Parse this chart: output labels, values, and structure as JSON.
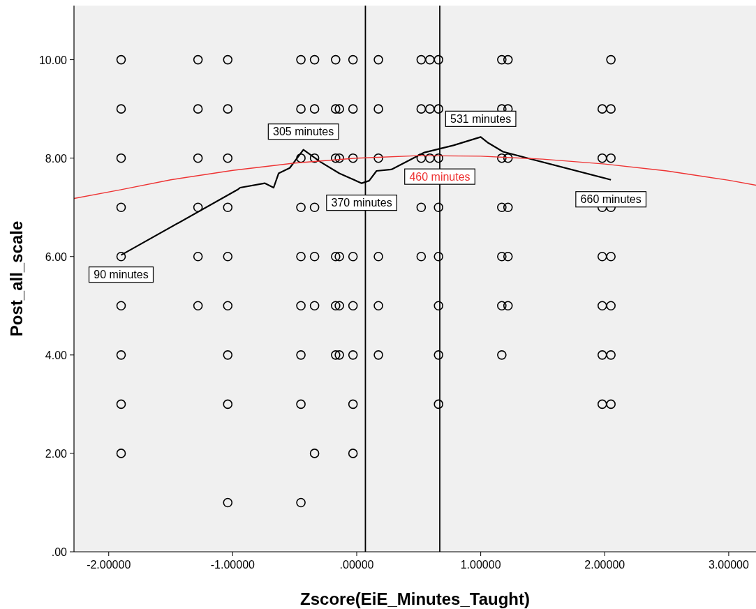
{
  "chart_data": {
    "type": "scatter",
    "xlabel": "Zscore(EiE_Minutes_Taught)",
    "ylabel": "Post_all_scale",
    "xlim": [
      -2.28,
      3.22
    ],
    "ylim": [
      0,
      11.1
    ],
    "xticks": [
      {
        "value": -2,
        "label": "-2.00000"
      },
      {
        "value": -1,
        "label": "-1.00000"
      },
      {
        "value": 0,
        "label": ".00000"
      },
      {
        "value": 1,
        "label": "1.00000"
      },
      {
        "value": 2,
        "label": "2.00000"
      },
      {
        "value": 3,
        "label": "3.00000"
      }
    ],
    "yticks": [
      {
        "value": 0,
        "label": ".00"
      },
      {
        "value": 2,
        "label": "2.00"
      },
      {
        "value": 4,
        "label": "4.00"
      },
      {
        "value": 6,
        "label": "6.00"
      },
      {
        "value": 8,
        "label": "8.00"
      },
      {
        "value": 10,
        "label": "10.00"
      }
    ],
    "grid": false,
    "marker": "circle",
    "series": [
      {
        "color": "#000000",
        "x": [
          -1.9,
          -1.9,
          -1.9,
          -1.9,
          -1.9,
          -1.9,
          -1.9,
          -1.9,
          -1.9,
          -1.28,
          -1.28,
          -1.28,
          -1.28,
          -1.28,
          -1.28,
          -1.04,
          -1.04,
          -1.04,
          -1.04,
          -1.04,
          -1.04,
          -1.04,
          -1.04,
          -1.04,
          -0.45,
          -0.45,
          -0.45,
          -0.45,
          -0.45,
          -0.45,
          -0.45,
          -0.45,
          -0.45,
          -0.34,
          -0.34,
          -0.34,
          -0.34,
          -0.34,
          -0.34,
          -0.34,
          -0.17,
          -0.17,
          -0.17,
          -0.17,
          -0.17,
          -0.17,
          -0.14,
          -0.14,
          -0.14,
          -0.14,
          -0.14,
          -0.03,
          -0.03,
          -0.03,
          -0.03,
          -0.03,
          -0.03,
          -0.03,
          -0.03,
          0.175,
          0.175,
          0.175,
          0.175,
          0.175,
          0.175,
          0.52,
          0.52,
          0.52,
          0.52,
          0.52,
          0.59,
          0.59,
          0.59,
          0.66,
          0.66,
          0.66,
          0.66,
          0.66,
          0.66,
          0.66,
          0.66,
          1.17,
          1.17,
          1.17,
          1.17,
          1.17,
          1.17,
          1.17,
          1.22,
          1.22,
          1.22,
          1.22,
          1.22,
          1.22,
          1.98,
          1.98,
          1.98,
          1.98,
          1.98,
          1.98,
          1.98,
          2.05,
          2.05,
          2.05,
          2.05,
          2.05,
          2.05,
          2.05,
          2.05
        ],
        "values": [
          10,
          9,
          8,
          7,
          6,
          5,
          4,
          3,
          2,
          10,
          9,
          8,
          7,
          6,
          5,
          10,
          9,
          8,
          7,
          6,
          5,
          4,
          3,
          1,
          10,
          9,
          8,
          7,
          6,
          5,
          4,
          3,
          1,
          10,
          9,
          8,
          7,
          6,
          5,
          2,
          10,
          9,
          8,
          6,
          5,
          4,
          9,
          8,
          6,
          5,
          4,
          10,
          9,
          8,
          6,
          5,
          4,
          3,
          2,
          10,
          9,
          8,
          6,
          5,
          4,
          10,
          9,
          8,
          7,
          6,
          10,
          9,
          8,
          10,
          9,
          8,
          7,
          6,
          5,
          4,
          3,
          10,
          9,
          8,
          7,
          6,
          5,
          4,
          10,
          9,
          8,
          7,
          6,
          5,
          9,
          8,
          7,
          6,
          5,
          4,
          3,
          10,
          9,
          8,
          7,
          6,
          5,
          4,
          3
        ]
      },
      {
        "type": "line",
        "marker": "none",
        "color": "#000000",
        "x": [
          -1.9,
          -0.96,
          -0.94,
          -0.74,
          -0.67,
          -0.63,
          -0.54,
          -0.43,
          -0.29,
          -0.14,
          0.04,
          0.1,
          0.16,
          0.28,
          0.54,
          0.78,
          1.0,
          1.06,
          1.18,
          2.05
        ],
        "values": [
          6.03,
          7.36,
          7.4,
          7.49,
          7.4,
          7.69,
          7.8,
          8.17,
          7.92,
          7.69,
          7.49,
          7.54,
          7.74,
          7.77,
          8.11,
          8.26,
          8.43,
          8.31,
          8.13,
          7.56
        ]
      },
      {
        "type": "line",
        "marker": "none",
        "name": "460 minutes",
        "color": "#ee3333",
        "x": [
          -2.28,
          -1.9,
          -1.5,
          -1,
          -0.5,
          0,
          0.5,
          1,
          1.5,
          2,
          2.5,
          3,
          3.22
        ],
        "values": [
          7.18,
          7.36,
          7.56,
          7.75,
          7.9,
          8.0,
          8.05,
          8.04,
          7.98,
          7.88,
          7.74,
          7.55,
          7.45
        ]
      }
    ],
    "ref_lines": [
      {
        "axis": "x",
        "value": 0.07,
        "color": "#000000"
      },
      {
        "axis": "x",
        "value": 0.67,
        "color": "#000000"
      }
    ],
    "annotations": [
      {
        "text": "305 minutes",
        "x": -0.43,
        "y": 8.17
      },
      {
        "text": "531 minutes",
        "x": 1.0,
        "y": 8.43
      },
      {
        "text": "370 minutes",
        "x": 0.04,
        "y": 7.49
      },
      {
        "text": "90 minutes",
        "x": -1.9,
        "y": 6.03
      },
      {
        "text": "660 minutes",
        "x": 2.05,
        "y": 7.56
      }
    ]
  }
}
